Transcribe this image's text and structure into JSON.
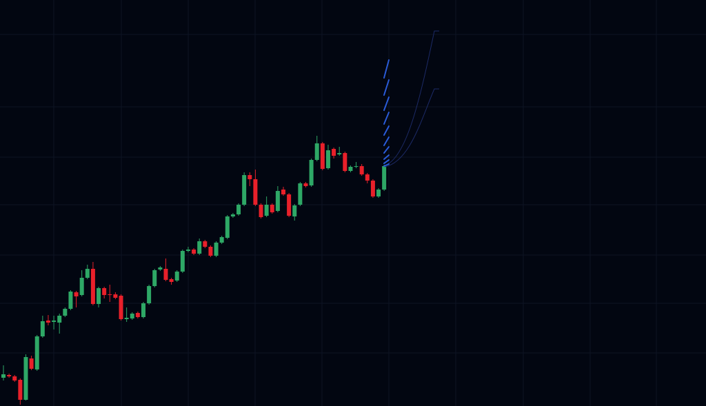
{
  "chart_data": {
    "type": "candlestick",
    "ylim": [
      0,
      589
    ],
    "up_color": "#2ea866",
    "down_color": "#e8202a",
    "open": [
      41,
      45,
      43,
      38,
      9,
      69,
      53,
      101,
      124,
      122,
      121,
      131,
      141,
      165,
      161,
      186,
      199,
      148,
      171,
      162,
      162,
      160,
      126,
      127,
      135,
      129,
      149,
      174,
      198,
      199,
      184,
      182,
      195,
      225,
      227,
      221,
      239,
      231,
      218,
      237,
      244,
      275,
      278,
      292,
      335,
      329,
      292,
      276,
      292,
      283,
      314,
      307,
      275,
      292,
      323,
      320,
      357,
      381,
      345,
      373,
      365,
      367,
      341,
      347,
      348,
      336,
      327,
      304,
      314
    ],
    "high": [
      59,
      47,
      45,
      40,
      75,
      73,
      103,
      131,
      132,
      131,
      134,
      143,
      168,
      167,
      197,
      205,
      209,
      173,
      173,
      176,
      165,
      162,
      143,
      136,
      137,
      151,
      176,
      199,
      203,
      214,
      186,
      197,
      227,
      231,
      229,
      243,
      241,
      233,
      239,
      247,
      277,
      280,
      294,
      339,
      339,
      343,
      294,
      304,
      294,
      319,
      318,
      309,
      293,
      325,
      325,
      359,
      392,
      383,
      379,
      375,
      376,
      369,
      349,
      354,
      351,
      338,
      329,
      316,
      350
    ],
    "low": [
      37,
      41,
      35,
      2,
      8,
      52,
      51,
      99,
      117,
      111,
      105,
      129,
      139,
      143,
      159,
      184,
      146,
      143,
      156,
      151,
      155,
      124,
      122,
      125,
      127,
      127,
      147,
      172,
      196,
      181,
      176,
      180,
      193,
      223,
      219,
      219,
      229,
      216,
      216,
      235,
      242,
      273,
      276,
      290,
      319,
      290,
      272,
      274,
      279,
      281,
      305,
      274,
      269,
      290,
      317,
      318,
      355,
      342,
      343,
      359,
      363,
      339,
      339,
      345,
      334,
      323,
      302,
      302,
      312
    ],
    "close": [
      46,
      43,
      37,
      9,
      71,
      54,
      101,
      123,
      121,
      124,
      131,
      141,
      166,
      159,
      186,
      199,
      148,
      171,
      161,
      161,
      157,
      126,
      128,
      134,
      129,
      149,
      174,
      197,
      201,
      183,
      180,
      195,
      225,
      227,
      221,
      239,
      231,
      218,
      237,
      245,
      275,
      278,
      292,
      335,
      329,
      292,
      274,
      292,
      281,
      312,
      307,
      276,
      291,
      323,
      319,
      357,
      381,
      344,
      371,
      363,
      367,
      341,
      347,
      348,
      336,
      327,
      304,
      314,
      348
    ]
  }
}
